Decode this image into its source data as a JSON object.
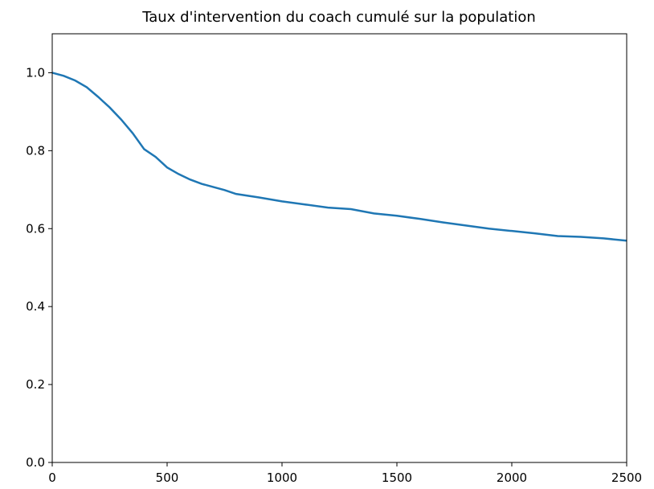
{
  "chart_data": {
    "type": "line",
    "title": "Taux d'intervention du coach cumulé sur la population",
    "x": [
      0,
      50,
      100,
      150,
      200,
      250,
      300,
      350,
      400,
      450,
      500,
      550,
      600,
      650,
      700,
      750,
      800,
      900,
      1000,
      1100,
      1200,
      1300,
      1400,
      1500,
      1600,
      1700,
      1800,
      1900,
      2000,
      2100,
      2200,
      2300,
      2400,
      2500
    ],
    "series": [
      {
        "color": "#1f77b4",
        "values": [
          1.0,
          0.992,
          0.98,
          0.963,
          0.938,
          0.911,
          0.88,
          0.845,
          0.804,
          0.784,
          0.757,
          0.74,
          0.726,
          0.715,
          0.707,
          0.699,
          0.689,
          0.68,
          0.67,
          0.662,
          0.654,
          0.65,
          0.639,
          0.633,
          0.625,
          0.616,
          0.608,
          0.6,
          0.594,
          0.588,
          0.581,
          0.579,
          0.575,
          0.569
        ]
      }
    ],
    "xlim": [
      0,
      2500
    ],
    "xticks": [
      0,
      500,
      1000,
      1500,
      2000,
      2500
    ],
    "ylim": [
      0,
      1.1
    ],
    "yticks": [
      {
        "value": 0,
        "label": "0.0"
      },
      0.2,
      0.4,
      0.6,
      0.8,
      {
        "value": 1,
        "label": "1.0"
      }
    ]
  }
}
